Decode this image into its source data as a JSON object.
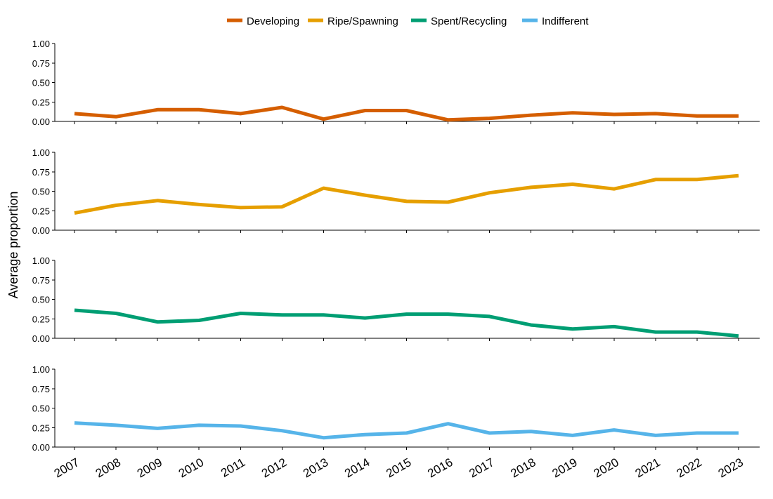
{
  "chart_data": {
    "type": "line",
    "ylabel": "Average proportion",
    "x": [
      "2007",
      "2008",
      "2009",
      "2010",
      "2011",
      "2012",
      "2013",
      "2014",
      "2015",
      "2016",
      "2017",
      "2018",
      "2019",
      "2020",
      "2021",
      "2022",
      "2023"
    ],
    "ylim": [
      0,
      1
    ],
    "yticks": [
      "0.00",
      "0.25",
      "0.50",
      "0.75",
      "1.00"
    ],
    "legend_position": "top",
    "grid": false,
    "series": [
      {
        "name": "Developing",
        "color": "#D55E00",
        "values": [
          0.1,
          0.06,
          0.15,
          0.15,
          0.1,
          0.18,
          0.03,
          0.14,
          0.14,
          0.02,
          0.04,
          0.08,
          0.11,
          0.09,
          0.1,
          0.07,
          0.07
        ]
      },
      {
        "name": "Ripe/Spawning",
        "color": "#E69F00",
        "values": [
          0.22,
          0.32,
          0.38,
          0.33,
          0.29,
          0.3,
          0.54,
          0.45,
          0.37,
          0.36,
          0.48,
          0.55,
          0.59,
          0.53,
          0.65,
          0.65,
          0.7
        ]
      },
      {
        "name": "Spent/Recycling",
        "color": "#009E73",
        "values": [
          0.36,
          0.32,
          0.21,
          0.23,
          0.32,
          0.3,
          0.3,
          0.26,
          0.31,
          0.31,
          0.28,
          0.17,
          0.12,
          0.15,
          0.08,
          0.08,
          0.03
        ]
      },
      {
        "name": "Indifferent",
        "color": "#56B4E9",
        "values": [
          0.31,
          0.28,
          0.24,
          0.28,
          0.27,
          0.21,
          0.12,
          0.16,
          0.18,
          0.3,
          0.18,
          0.2,
          0.15,
          0.22,
          0.15,
          0.18,
          0.18
        ]
      }
    ]
  }
}
